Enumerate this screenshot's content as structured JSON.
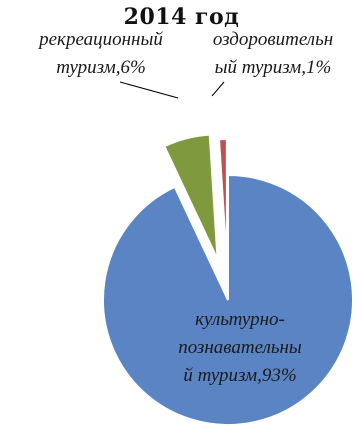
{
  "chart_data": {
    "type": "pie",
    "title": "2014 год",
    "slices": [
      {
        "label_lines": [
          "культурно-",
          "познавательны",
          "й туризм,93%"
        ],
        "value": 93,
        "color": "#5b84c4"
      },
      {
        "label_lines": [
          "рекреационный",
          "туризм,6%"
        ],
        "value": 6,
        "color": "#7f9a3e"
      },
      {
        "label_lines": [
          "оздоровительн",
          "ый туризм,1%"
        ],
        "value": 1,
        "color": "#c0504d"
      }
    ]
  }
}
